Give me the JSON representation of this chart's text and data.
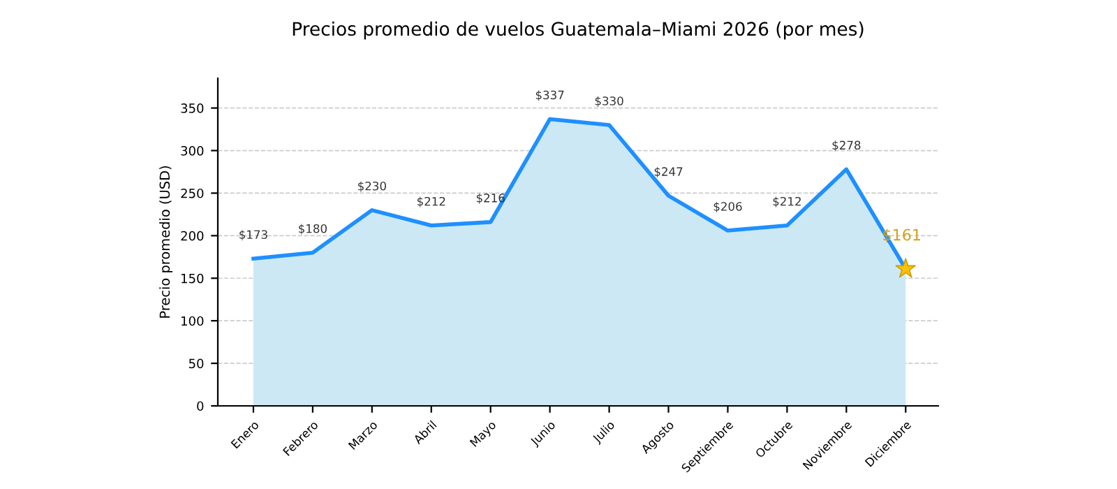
{
  "chart_data": {
    "type": "area",
    "title": "Precios promedio de vuelos Guatemala–Miami 2026 (por mes)",
    "ylabel": "Precio promedio (USD)",
    "categories": [
      "Enero",
      "Febrero",
      "Marzo",
      "Abril",
      "Mayo",
      "Junio",
      "Julio",
      "Agosto",
      "Septiembre",
      "Octubre",
      "Noviembre",
      "Diciembre"
    ],
    "series": [
      {
        "color": "#1e90ff",
        "values": [
          173,
          180,
          230,
          212,
          216,
          337,
          330,
          247,
          206,
          212,
          278,
          161
        ],
        "value_labels": [
          "$173",
          "$180",
          "$230",
          "$212",
          "$216",
          "$337",
          "$330",
          "$247",
          "$206",
          "$212",
          "$278",
          null
        ]
      },
      {
        "type": "scatter",
        "color": "#ffc107",
        "x": [
          "Diciembre"
        ],
        "values": [
          161
        ],
        "marker": "star"
      }
    ],
    "annotations": [
      {
        "text": "$161",
        "x": "Diciembre",
        "y": 161
      }
    ],
    "ylim": [
      0,
      385
    ],
    "yticks": [
      0,
      50,
      100,
      150,
      200,
      250,
      300,
      350
    ],
    "grid": "y",
    "legend": false
  }
}
